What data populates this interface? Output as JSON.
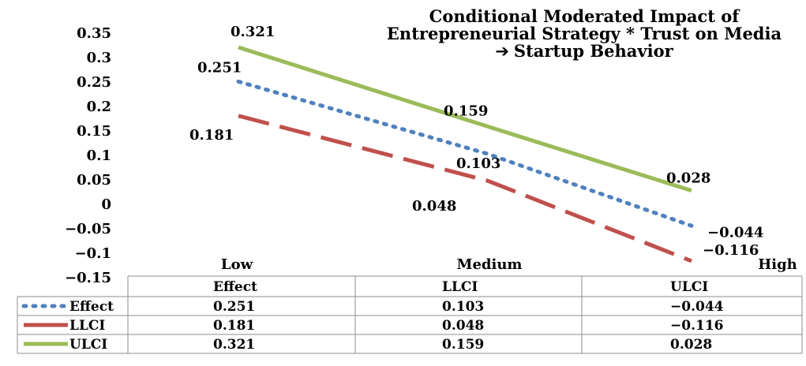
{
  "chart_data": {
    "type": "line",
    "title_lines": [
      "Conditional Moderated Impact of",
      "Entrepreneurial Strategy * Trust on Media",
      "Startup Behavior"
    ],
    "title_arrow": "➔",
    "categories": [
      "Low",
      "Medium",
      "High"
    ],
    "ylim": [
      -0.15,
      0.35
    ],
    "yticks": [
      "0.35",
      "0.3",
      "0.25",
      "0.2",
      "0.15",
      "0.1",
      "0.05",
      "0",
      "-0.05",
      "-0.1",
      "-0.15"
    ],
    "series": [
      {
        "name": "Effect",
        "values": [
          0.251,
          0.103,
          -0.044
        ],
        "labels": [
          "0.251",
          "0.103",
          "-0.044"
        ],
        "color": "#4f81bd",
        "style": "dotted"
      },
      {
        "name": "LLCI",
        "values": [
          0.181,
          0.048,
          -0.116
        ],
        "labels": [
          "0.181",
          "0.048",
          "-0.116"
        ],
        "color": "#c0504d",
        "style": "dashed"
      },
      {
        "name": "ULCI",
        "values": [
          0.321,
          0.159,
          0.028
        ],
        "labels": [
          "0.321",
          "0.159",
          "0.028"
        ],
        "color": "#9bbb59",
        "style": "solid"
      }
    ],
    "table": {
      "header": [
        "Effect",
        "LLCI",
        "ULCI"
      ],
      "rows": [
        {
          "key": "Effect",
          "cells": [
            "0.251",
            "0.103",
            "-0.044"
          ]
        },
        {
          "key": "LLCI",
          "cells": [
            "0.181",
            "0.048",
            "-0.116"
          ]
        },
        {
          "key": "ULCI",
          "cells": [
            "0.321",
            "0.159",
            "0.028"
          ]
        }
      ]
    },
    "grid": false,
    "legend": "data-table"
  }
}
